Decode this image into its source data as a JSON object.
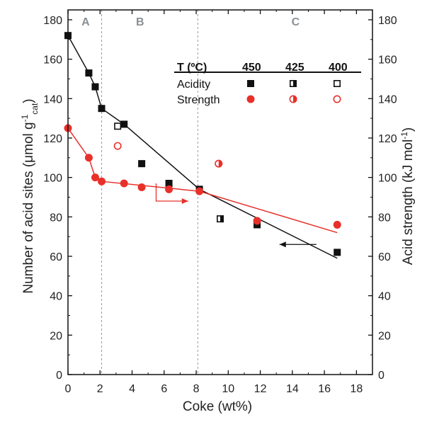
{
  "chart_data": {
    "type": "scatter",
    "xlabel": "Coke (wt%)",
    "ylabel_left": "Number of acid sites (μmol g",
    "ylabel_left_sup": "-1",
    "ylabel_left_sub": "cat",
    "ylabel_left_close": ")",
    "ylabel_right": "Acid strength (kJ mol",
    "ylabel_right_sup": "-1",
    "ylabel_right_close": ")",
    "xlim": [
      0,
      19
    ],
    "ylim": [
      0,
      185
    ],
    "x_ticks": [
      0,
      2,
      4,
      6,
      8,
      10,
      12,
      14,
      16,
      18
    ],
    "y_ticks": [
      0,
      20,
      40,
      60,
      80,
      100,
      120,
      140,
      160,
      180
    ],
    "region_boundaries": [
      2.1,
      8.1
    ],
    "regions": [
      {
        "label": "A",
        "x": 1.1
      },
      {
        "label": "B",
        "x": 4.5
      },
      {
        "label": "C",
        "x": 14.2
      }
    ],
    "legend": {
      "header": "T (ºC)",
      "temperatures": [
        "450",
        "425",
        "400"
      ],
      "rows": [
        "Acidity",
        "Strength"
      ]
    },
    "colors": {
      "acidity": "#111111",
      "strength": "#e8302a",
      "divider": "#9a9a9a"
    },
    "series": [
      {
        "name": "Acidity",
        "temperature": "450",
        "points": [
          [
            0,
            172
          ],
          [
            1.3,
            153
          ],
          [
            1.7,
            146
          ],
          [
            2.1,
            135
          ],
          [
            3.5,
            127
          ],
          [
            4.6,
            107
          ],
          [
            6.3,
            97
          ],
          [
            8.2,
            94
          ],
          [
            11.8,
            76
          ],
          [
            16.8,
            62
          ]
        ]
      },
      {
        "name": "Acidity",
        "temperature": "425",
        "points": [
          [
            9.5,
            79
          ]
        ]
      },
      {
        "name": "Acidity",
        "temperature": "400",
        "points": [
          [
            3.1,
            126
          ]
        ]
      },
      {
        "name": "Strength",
        "temperature": "450",
        "points": [
          [
            0,
            125
          ],
          [
            1.3,
            110
          ],
          [
            1.7,
            100
          ],
          [
            2.1,
            98
          ],
          [
            3.5,
            97
          ],
          [
            4.6,
            95
          ],
          [
            6.3,
            94
          ],
          [
            8.2,
            93
          ],
          [
            11.8,
            78
          ],
          [
            16.8,
            76
          ]
        ]
      },
      {
        "name": "Strength",
        "temperature": "425",
        "points": [
          [
            9.4,
            107
          ]
        ]
      },
      {
        "name": "Strength",
        "temperature": "400",
        "points": [
          [
            3.1,
            116
          ]
        ]
      }
    ],
    "fit_lines": [
      {
        "name": "Acidity",
        "points": [
          [
            0,
            172
          ],
          [
            1.3,
            153
          ],
          [
            1.7,
            146
          ],
          [
            2.1,
            135
          ],
          [
            3.5,
            127
          ],
          [
            8.2,
            94
          ],
          [
            16.8,
            59
          ]
        ]
      },
      {
        "name": "Strength",
        "points": [
          [
            0,
            125
          ],
          [
            1.3,
            110
          ],
          [
            1.7,
            100
          ],
          [
            2.1,
            98
          ],
          [
            8.2,
            93
          ],
          [
            16.8,
            72
          ]
        ]
      }
    ],
    "axis_arrows": [
      {
        "name": "strength",
        "direction": "right",
        "from": [
          5.5,
          97
        ],
        "via": [
          5.5,
          88
        ],
        "to": [
          7.5,
          88
        ]
      },
      {
        "name": "acidity",
        "direction": "left",
        "from": [
          15.5,
          66
        ],
        "to": [
          13.2,
          66
        ]
      }
    ]
  }
}
